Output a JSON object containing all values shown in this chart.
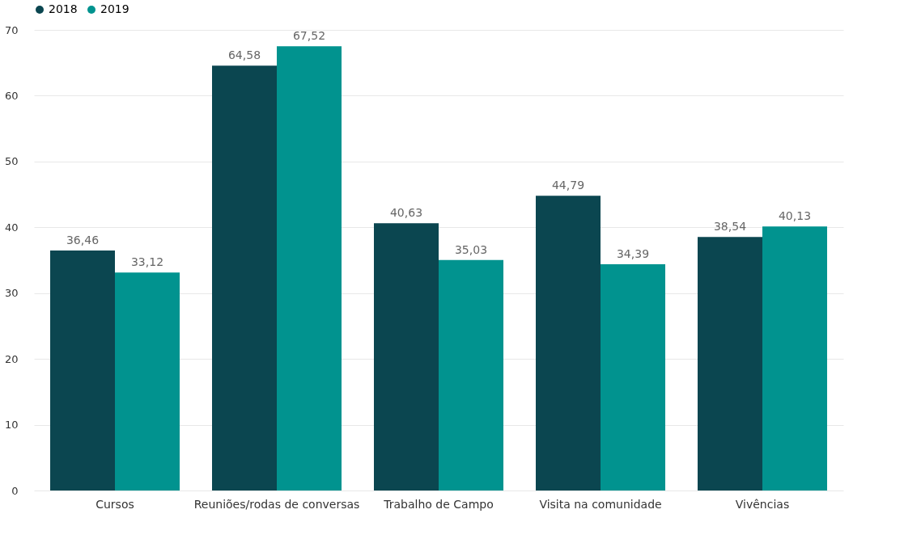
{
  "chart_data": {
    "type": "bar",
    "categories": [
      "Cursos",
      "Reuniões/rodas de conversas",
      "Trabalho de Campo",
      "Visita na comunidade",
      "Vivências"
    ],
    "series": [
      {
        "name": "2018",
        "color": "#0b4650",
        "values": [
          36.46,
          64.58,
          40.63,
          44.79,
          38.54
        ],
        "value_labels": [
          "36,46",
          "64,58",
          "40,63",
          "44,79",
          "38,54"
        ]
      },
      {
        "name": "2019",
        "color": "#01938f",
        "values": [
          33.12,
          67.52,
          35.03,
          34.39,
          40.13
        ],
        "value_labels": [
          "33,12",
          "67,52",
          "35,03",
          "34,39",
          "40,13"
        ]
      }
    ],
    "ylim": [
      0,
      70
    ],
    "yticks": [
      0,
      10,
      20,
      30,
      40,
      50,
      60,
      70
    ],
    "grid": "y",
    "legend": "top"
  }
}
